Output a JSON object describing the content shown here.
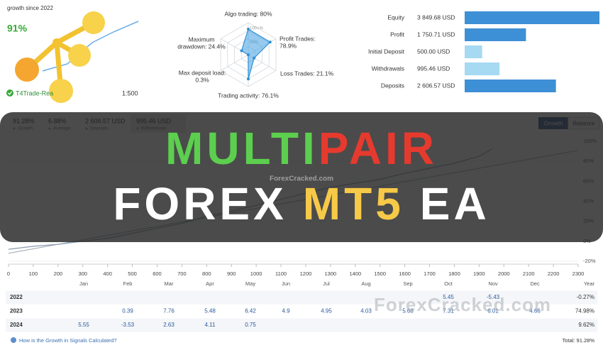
{
  "header": {
    "growth_label": "growth since 2022",
    "growth": "91%",
    "broker": "T4Trade-Rea",
    "leverage": "1:500"
  },
  "radar": {
    "scale": [
      "100+%",
      "50%"
    ],
    "axes": [
      {
        "label": [
          "Algo trading: 80%"
        ],
        "value": 80
      },
      {
        "label": [
          "Profit Trades:",
          "78.9%"
        ],
        "value": 78.9
      },
      {
        "label": [
          "Loss Trades: 21.1%"
        ],
        "value": 21.1
      },
      {
        "label": [
          "Trading activity: 76.1%"
        ],
        "value": 76.1
      },
      {
        "label": [
          "Max deposit load:",
          "0.3%"
        ],
        "value": 0.3
      },
      {
        "label": [
          "Maximum",
          "drawdown: 24.4%"
        ],
        "value": 24.4
      }
    ]
  },
  "summary": [
    {
      "label": "Equity",
      "value": 3849.68,
      "value_label": "3 849.68 USD",
      "color": "#3d8fd6"
    },
    {
      "label": "Profit",
      "value": 1750.71,
      "value_label": "1 750.71 USD",
      "color": "#3d8fd6"
    },
    {
      "label": "Initial Deposit",
      "value": 500.0,
      "value_label": "500.00 USD",
      "color": "#a6d9f2"
    },
    {
      "label": "Withdrawals",
      "value": 995.46,
      "value_label": "995.46 USD",
      "color": "#a6d9f2"
    },
    {
      "label": "Deposits",
      "value": 2606.57,
      "value_label": "2 606.57 USD",
      "color": "#3d8fd6"
    }
  ],
  "stats": [
    {
      "value": "91.28%",
      "label": "Growth"
    },
    {
      "value": "6.88%",
      "label": "Average"
    },
    {
      "value": "2 606.57 USD",
      "label": "Deposits"
    },
    {
      "value": "995.46 USD",
      "label": "Withdrawals"
    }
  ],
  "tabs": [
    "Growth",
    "Balance"
  ],
  "growth_chart": {
    "x": [
      0,
      100,
      200,
      300,
      400,
      500,
      600,
      700,
      800,
      900,
      1000,
      1100,
      1200,
      1300,
      1400,
      1500,
      1600,
      1700,
      1800,
      1900,
      1950
    ],
    "values": [
      -8,
      -5,
      -3,
      0,
      3,
      8,
      13,
      18,
      25,
      30,
      36,
      42,
      48,
      54,
      58,
      62,
      68,
      73,
      78,
      85,
      92
    ],
    "trend_x": [
      0,
      2300
    ],
    "trend_values": [
      -12,
      91
    ],
    "color": "#8a9bb0",
    "xlim": [
      0,
      2300
    ],
    "ylim": [
      -20,
      100
    ],
    "xticks": [
      0,
      100,
      200,
      300,
      400,
      500,
      600,
      700,
      800,
      900,
      1000,
      1100,
      1200,
      1300,
      1400,
      1500,
      1600,
      1700,
      1800,
      1900,
      2000,
      2100,
      2200,
      2300
    ],
    "yticks": [
      {
        "value": 100,
        "label": "100%"
      },
      {
        "value": 80,
        "label": "80%"
      },
      {
        "value": 60,
        "label": "60%"
      },
      {
        "value": 40,
        "label": "40%"
      },
      {
        "value": 20,
        "label": "20%"
      },
      {
        "value": 0,
        "label": "0%"
      },
      {
        "value": -20,
        "label": "-20%"
      }
    ]
  },
  "banner": {
    "line1": [
      {
        "text": "MULTI",
        "color": "#5ccf4e"
      },
      {
        "text": "PAIR",
        "color": "#e63a2e"
      }
    ],
    "line2": [
      {
        "text": "FOREX",
        "color": "#ffffff"
      },
      {
        "text": "MT5",
        "color": "#f7c948"
      },
      {
        "text": "EA",
        "color": "#ffffff"
      }
    ]
  },
  "watermarks": [
    "ForexCracked.com",
    "ForexCracked.com"
  ],
  "table": {
    "columns": [
      "Jan",
      "Feb",
      "Mar",
      "Apr",
      "May",
      "Jun",
      "Jul",
      "Aug",
      "Sep",
      "Oct",
      "Nov",
      "Dec",
      "Year"
    ],
    "rows": [
      {
        "year": "2022",
        "cells": [
          null,
          null,
          null,
          null,
          null,
          null,
          null,
          null,
          null,
          5.45,
          -5.43,
          null,
          "-0.27%"
        ]
      },
      {
        "year": "2023",
        "cells": [
          null,
          0.39,
          7.76,
          5.48,
          6.42,
          4.9,
          4.95,
          4.03,
          5.68,
          7.31,
          6.01,
          4.66,
          "74.98%"
        ]
      },
      {
        "year": "2024",
        "cells": [
          5.55,
          -3.53,
          2.63,
          4.11,
          0.75,
          null,
          null,
          null,
          null,
          null,
          null,
          null,
          "9.62%"
        ]
      }
    ]
  },
  "footer": {
    "link": "How is the Growth in Signals Calculated?",
    "total": "Total: 91.28%"
  }
}
